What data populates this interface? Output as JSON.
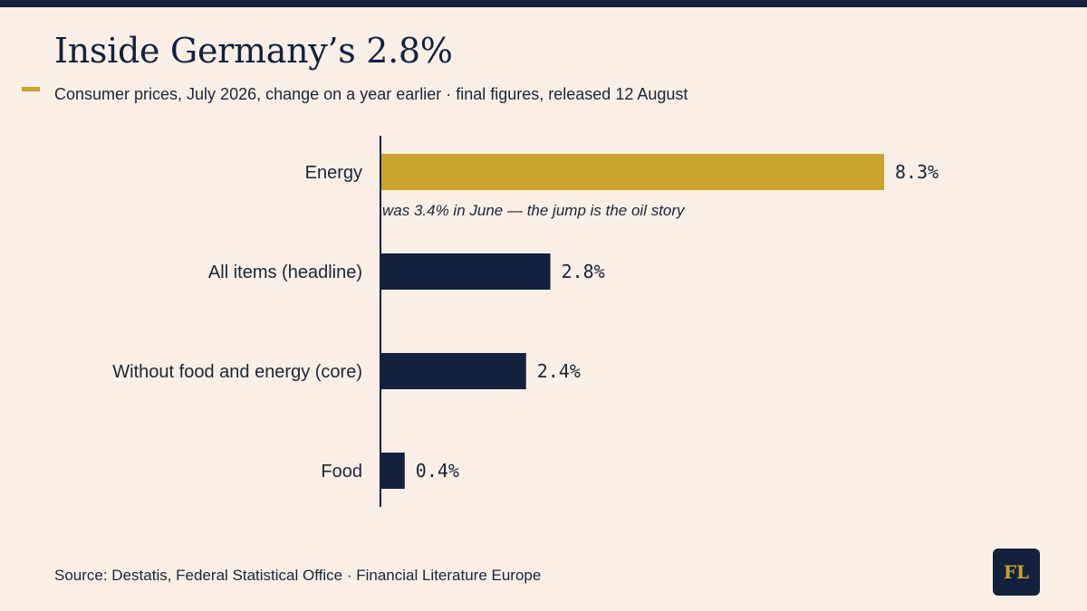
{
  "header": {
    "title": "Inside Germany’s 2.8%",
    "subtitle": "Consumer prices, July 2026, change on a year earlier · final figures, released 12 August"
  },
  "footer": {
    "source": "Source: Destatis, Federal Statistical Office · Financial Literature Europe",
    "logo_text": "FL"
  },
  "colors": {
    "background": "#f9efe7",
    "highlight": "#c9a32b",
    "bar": "#14213d",
    "text": "#1d2433"
  },
  "chart_data": {
    "type": "bar",
    "orientation": "horizontal",
    "categories": [
      "Energy",
      "All items (headline)",
      "Without food and energy (core)",
      "Food"
    ],
    "values": [
      8.3,
      2.8,
      2.4,
      0.4
    ],
    "value_labels": [
      "8.3%",
      "2.8%",
      "2.4%",
      "0.4%"
    ],
    "highlight_index": 0,
    "annotations": [
      {
        "category": "Energy",
        "text": "was 3.4% in June — the jump is the oil story"
      }
    ],
    "xlim": [
      0,
      8.3
    ],
    "grid": false,
    "legend": "none"
  }
}
